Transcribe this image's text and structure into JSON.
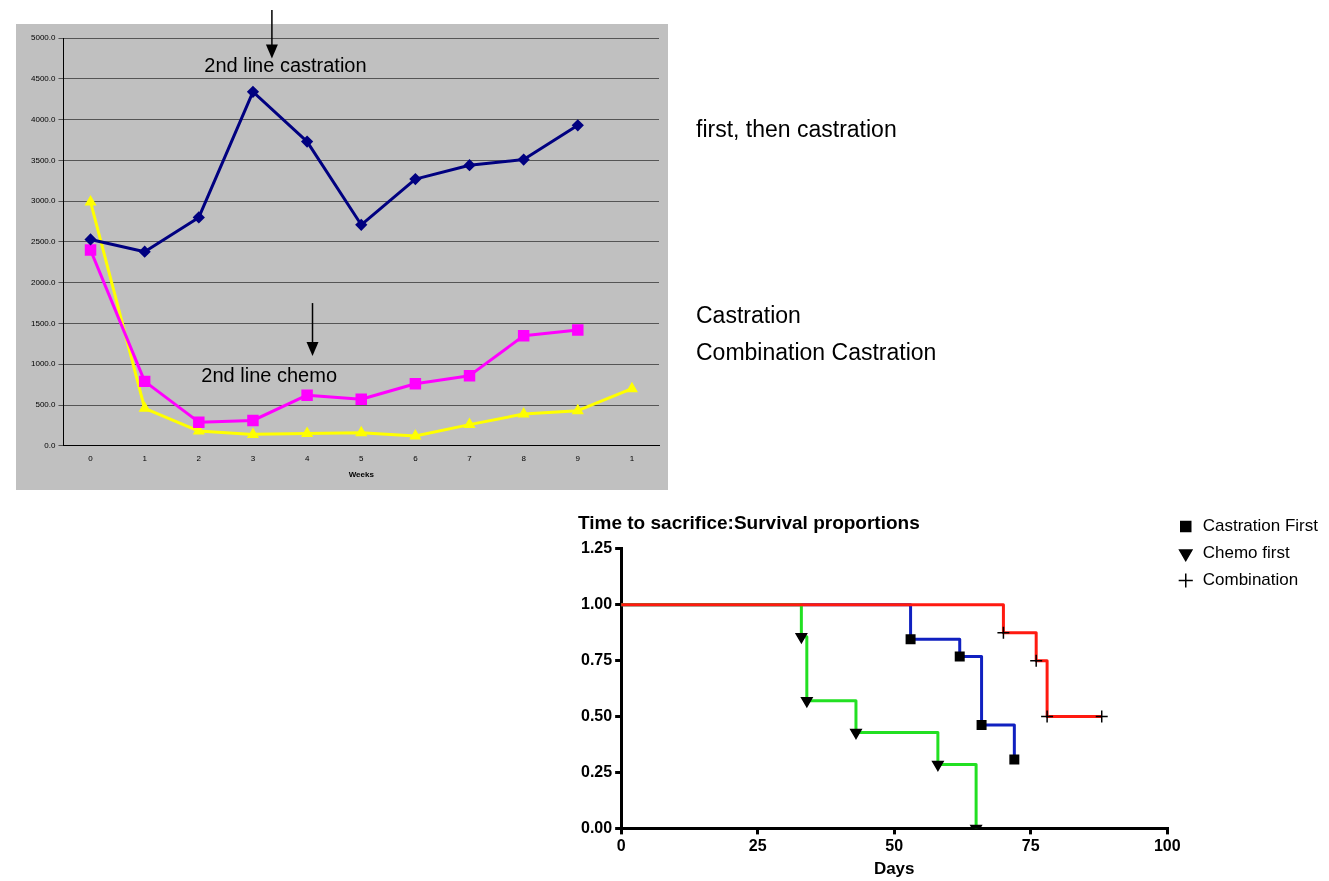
{
  "chart_data": [
    {
      "type": "line",
      "xlabel": "Weeks",
      "categories": [
        "0",
        "1",
        "2",
        "3",
        "4",
        "5",
        "6",
        "7",
        "8",
        "9",
        "1"
      ],
      "series": [
        {
          "color": "#000080",
          "marker": "diamond",
          "values": [
            2530,
            2380,
            2800,
            4340,
            3730,
            2710,
            3270,
            3440,
            3510,
            3930,
            null
          ]
        },
        {
          "color": "#ff00ff",
          "marker": "square",
          "values": [
            2400,
            790,
            290,
            310,
            620,
            570,
            760,
            860,
            1350,
            1420,
            null
          ]
        },
        {
          "color": "#ffff00",
          "marker": "triangle",
          "values": [
            2990,
            460,
            180,
            140,
            150,
            160,
            120,
            260,
            390,
            430,
            700
          ]
        }
      ],
      "ylim": [
        0,
        5000
      ],
      "yticks": [
        {
          "value": 0,
          "label": "0.0"
        },
        {
          "value": 500,
          "label": "500.0"
        },
        {
          "value": 1000,
          "label": "1000.0"
        },
        {
          "value": 1500,
          "label": "1500.0"
        },
        {
          "value": 2000,
          "label": "2000.0"
        },
        {
          "value": 2500,
          "label": "2500.0"
        },
        {
          "value": 3000,
          "label": "3000.0"
        },
        {
          "value": 3500,
          "label": "3500.0"
        },
        {
          "value": 4000,
          "label": "4000.0"
        },
        {
          "value": 4500,
          "label": "4500.0"
        },
        {
          "value": 5000,
          "label": "5000.0"
        }
      ],
      "grid": "y",
      "legend": false,
      "annotations": [
        "2nd line castration",
        "2nd line chemo",
        "first, then castration",
        "Castration",
        "Combination Castration"
      ]
    },
    {
      "type": "step",
      "title": "Time to sacrifice:Survival proportions",
      "xlabel": "Days",
      "series": [
        {
          "name": "Castration First",
          "color": "#1020c0",
          "marker": "square",
          "x": [
            0,
            53,
            62,
            66,
            72
          ],
          "values": [
            1,
            0.846,
            0.769,
            0.462,
            0.308
          ]
        },
        {
          "name": "Chemo first",
          "color": "#22e022",
          "marker": "triangle",
          "x": [
            0,
            33,
            34,
            43,
            58,
            65
          ],
          "values": [
            1,
            0.857,
            0.571,
            0.429,
            0.286,
            0
          ]
        },
        {
          "name": "Combination",
          "color": "#ff1a10",
          "marker": "cross",
          "x": [
            0,
            70,
            76,
            78,
            88
          ],
          "values": [
            1,
            0.875,
            0.75,
            0.5,
            0.5
          ]
        }
      ],
      "xlim": [
        0,
        100
      ],
      "xticks": [
        0,
        25,
        50,
        75,
        100
      ],
      "ylim": [
        0,
        1.25
      ],
      "yticks": [
        {
          "value": 0,
          "label": "0.00"
        },
        {
          "value": 0.25,
          "label": "0.25"
        },
        {
          "value": 0.5,
          "label": "0.50"
        },
        {
          "value": 0.75,
          "label": "0.75"
        },
        {
          "value": 1,
          "label": "1.00"
        },
        {
          "value": 1.25,
          "label": "1.25"
        }
      ],
      "grid": false,
      "legend": "top right"
    }
  ]
}
